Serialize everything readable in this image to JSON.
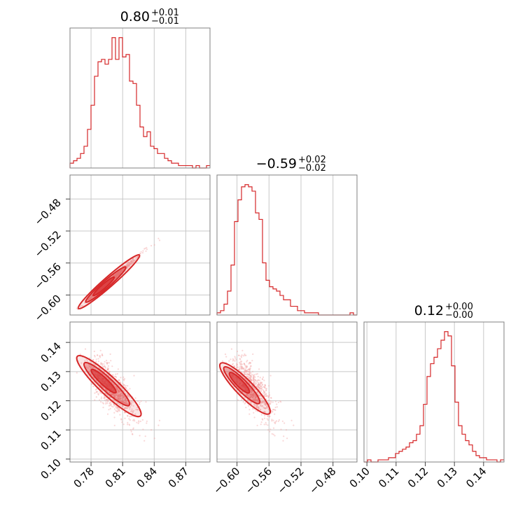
{
  "chart_data": {
    "type": "corner",
    "color": "#d62728",
    "parameters": [
      {
        "title": {
          "value": "0.80",
          "plus": "+0.01",
          "minus": "−0.01"
        },
        "range": [
          0.76,
          0.893
        ],
        "ticks": [
          0.78,
          0.81,
          0.84,
          0.87
        ],
        "tick_labels": [
          "0.78",
          "0.81",
          "0.84",
          "0.87"
        ],
        "hist_counts": [
          2,
          3,
          4,
          6,
          9,
          16,
          26,
          38,
          44,
          45,
          43,
          45,
          54,
          45,
          54,
          46,
          47,
          36,
          35,
          26,
          17,
          13,
          15,
          9,
          8,
          6,
          6,
          4,
          3,
          2,
          2,
          1,
          1,
          1,
          1,
          0,
          1,
          0,
          0,
          1
        ]
      },
      {
        "title": {
          "value": "−0.59",
          "plus": "+0.02",
          "minus": "−0.02"
        },
        "range": [
          -0.625,
          -0.45
        ],
        "ticks": [
          -0.6,
          -0.56,
          -0.52,
          -0.48
        ],
        "tick_labels": [
          "−0.60",
          "−0.56",
          "−0.52",
          "−0.48"
        ],
        "hist_counts": [
          1,
          2,
          5,
          11,
          23,
          43,
          53,
          59,
          60,
          59,
          57,
          47,
          44,
          24,
          16,
          13,
          12,
          11,
          9,
          7,
          7,
          4,
          4,
          2,
          2,
          1,
          1,
          1,
          1,
          0,
          0,
          0,
          0,
          0,
          0,
          0,
          0,
          0,
          1,
          0
        ]
      },
      {
        "title": {
          "value": "0.12",
          "plus": "+0.00",
          "minus": "−0.00"
        },
        "range": [
          0.099,
          0.147
        ],
        "ticks": [
          0.1,
          0.11,
          0.12,
          0.13,
          0.14
        ],
        "tick_labels": [
          "0.10",
          "0.11",
          "0.12",
          "0.13",
          "0.14"
        ],
        "hist_counts": [
          0,
          1,
          0,
          0,
          1,
          1,
          1,
          2,
          2,
          4,
          5,
          6,
          7,
          9,
          10,
          13,
          17,
          27,
          40,
          46,
          49,
          53,
          57,
          61,
          59,
          45,
          28,
          17,
          13,
          10,
          8,
          5,
          3,
          2,
          2,
          1,
          1,
          1,
          0,
          1
        ]
      }
    ],
    "relations": {
      "p1_vs_p0": {
        "slope": 1.15,
        "intercept": -1.5,
        "scatter": 0.0015,
        "p0_center": 0.795,
        "p0_sd": 0.012
      },
      "p2_vs_p0": {
        "slope": -0.34,
        "intercept": 0.396,
        "scatter": 0.0035
      },
      "p2_vs_p1": {
        "slope": -0.28,
        "intercept": -0.041,
        "scatter": 0.0035
      }
    },
    "grid": true
  }
}
